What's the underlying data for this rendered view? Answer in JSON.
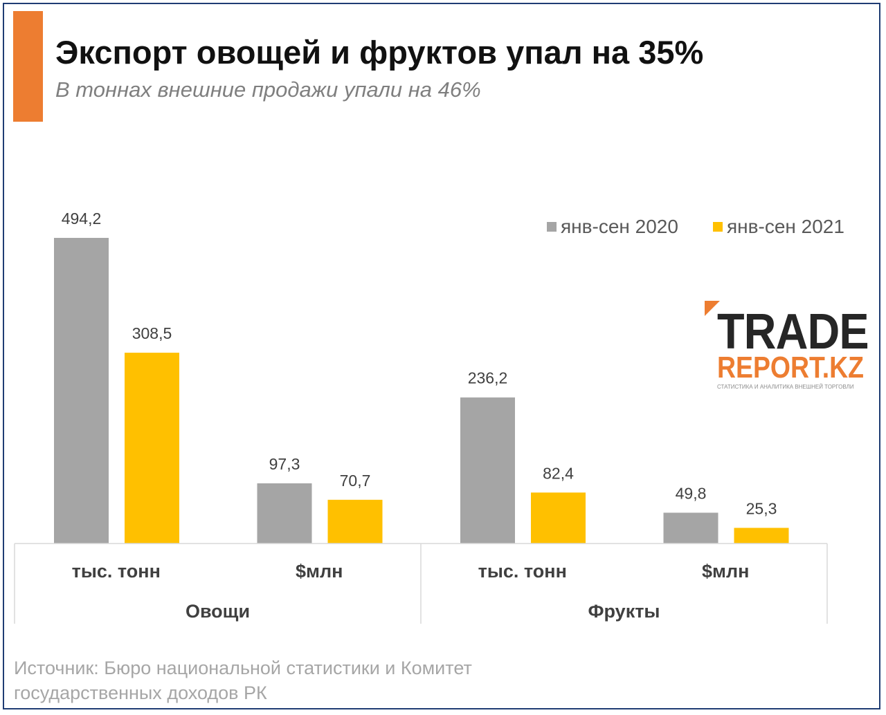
{
  "header": {
    "title": "Экспорт овощей и фруктов упал на 35%",
    "subtitle": "В тоннах внешние продажи упали на 46%"
  },
  "logo": {
    "line1": "TRADE",
    "line2": "REPORT.KZ",
    "tagline": "СТАТИСТИКА И АНАЛИТИКА ВНЕШНЕЙ ТОРГОВЛИ"
  },
  "footer": {
    "source_line1": "Источник: Бюро национальной статистики и Комитет",
    "source_line2": "государственных доходов РК"
  },
  "colors": {
    "accent": "#ed7d31",
    "series_2020": "#a5a5a5",
    "series_2021": "#ffc000",
    "border": "#1f3c73"
  },
  "chart_data": {
    "type": "bar",
    "title": "Экспорт овощей и фруктов упал на 35%",
    "groups": [
      {
        "label": "Овощи",
        "categories": [
          "тыс. тонн",
          "$млн"
        ]
      },
      {
        "label": "Фрукты",
        "categories": [
          "тыс. тонн",
          "$млн"
        ]
      }
    ],
    "categories": [
      "тыс. тонн",
      "$млн",
      "тыс. тонн",
      "$млн"
    ],
    "series": [
      {
        "name": "янв-сен 2020",
        "color": "#a5a5a5",
        "values": [
          494.2,
          97.3,
          236.2,
          49.8
        ],
        "labels": [
          "494,2",
          "97,3",
          "236,2",
          "49,8"
        ]
      },
      {
        "name": "янв-сен 2021",
        "color": "#ffc000",
        "values": [
          308.5,
          70.7,
          82.4,
          25.3
        ],
        "labels": [
          "308,5",
          "70,7",
          "82,4",
          "25,3"
        ]
      }
    ],
    "ylim": [
      0,
      494.2
    ],
    "grid": false,
    "legend_position": "top-right",
    "xlabel": "",
    "ylabel": ""
  }
}
